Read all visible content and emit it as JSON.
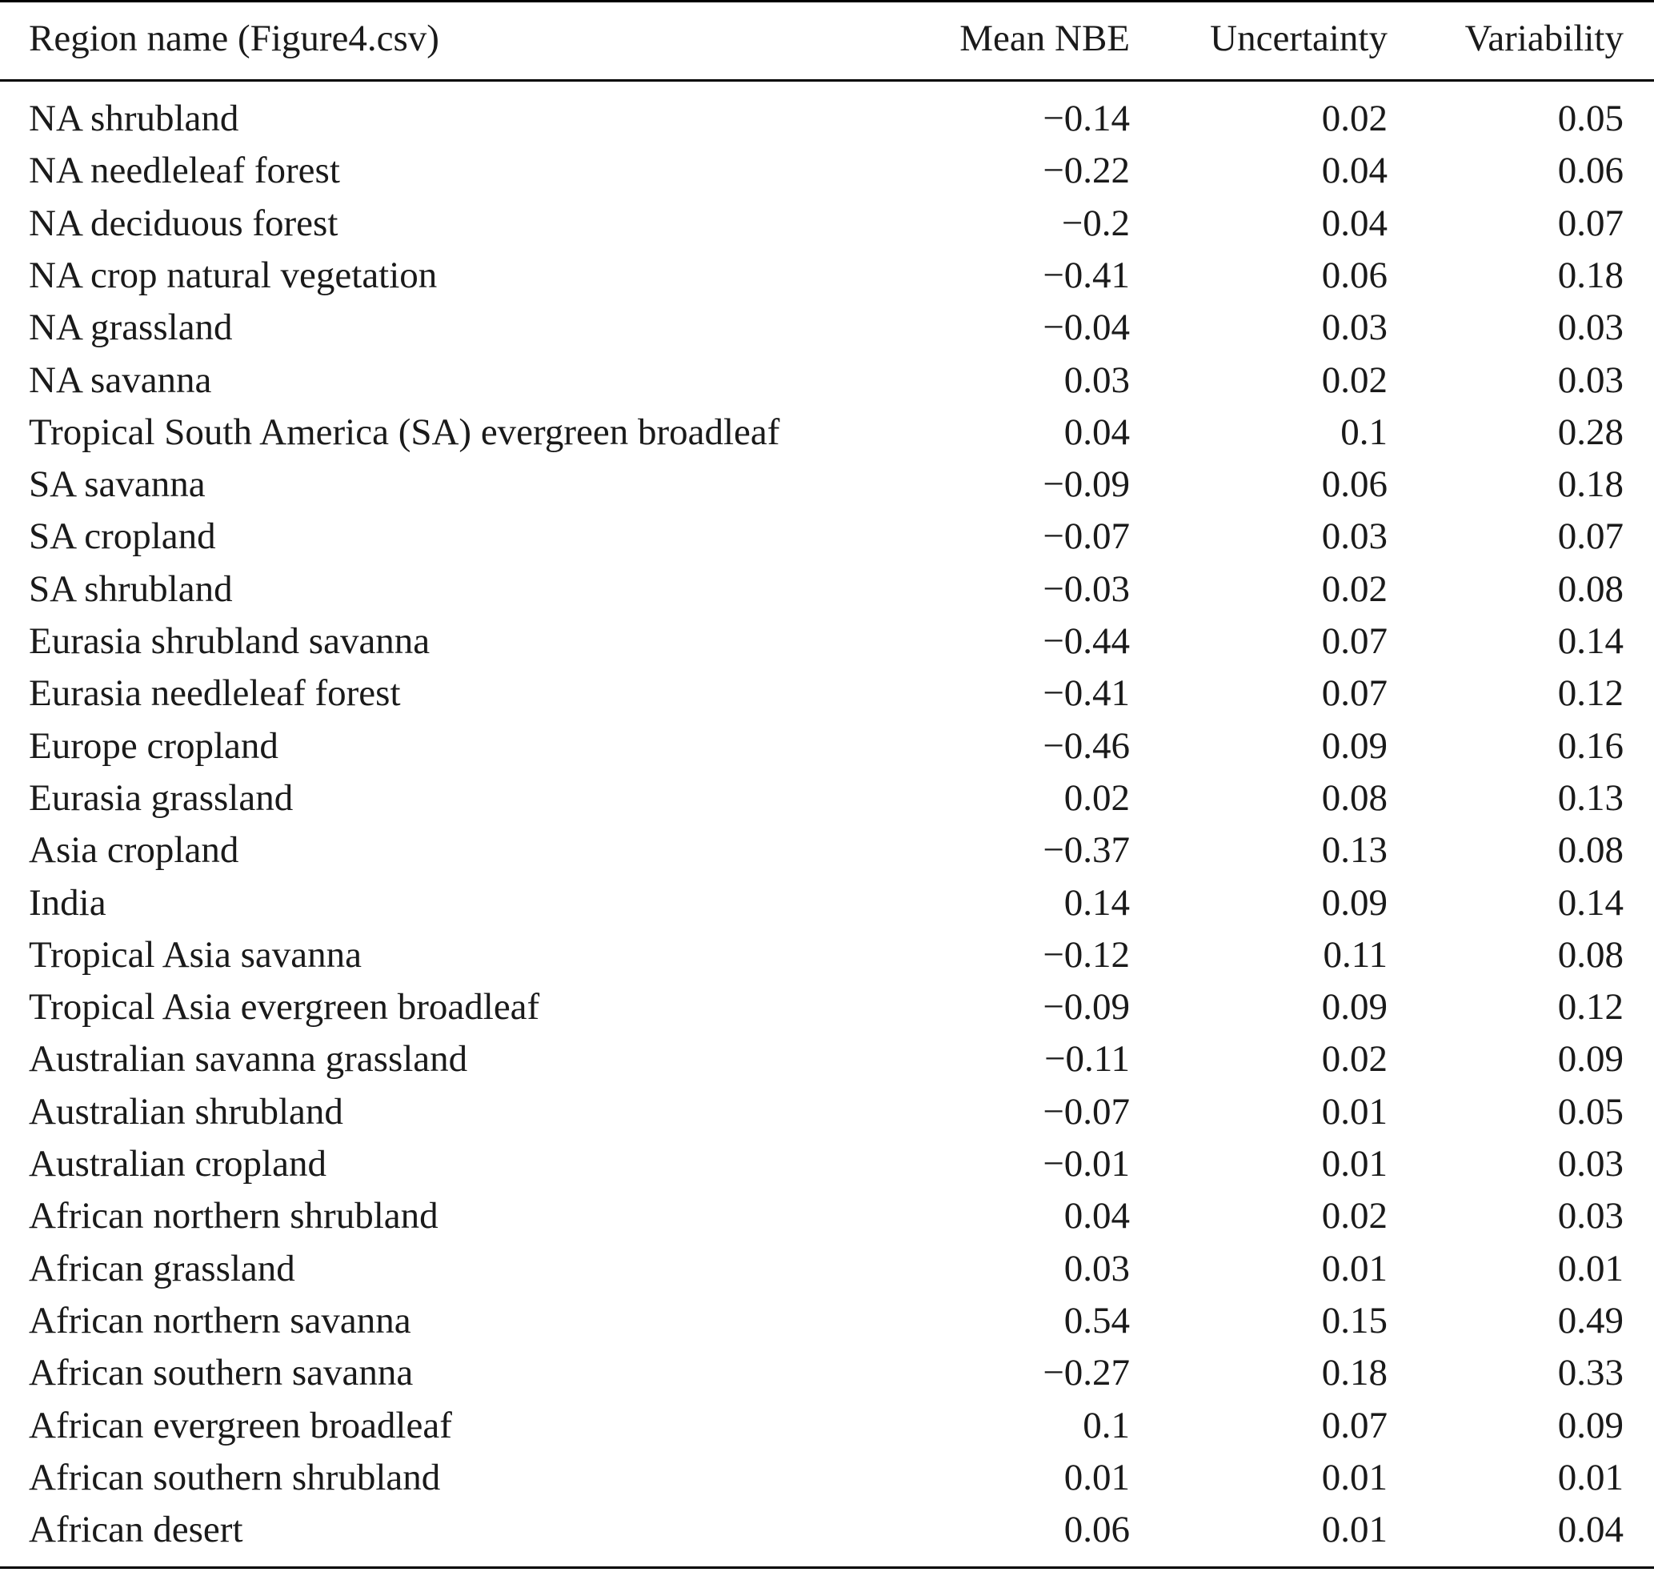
{
  "table": {
    "headers": {
      "region": "Region name (Figure4.csv)",
      "mean_nbe": "Mean NBE",
      "uncertainty": "Uncertainty",
      "variability": "Variability"
    },
    "rows": [
      {
        "region": "NA shrubland",
        "mean_nbe": "−0.14",
        "uncertainty": "0.02",
        "variability": "0.05"
      },
      {
        "region": "NA needleleaf forest",
        "mean_nbe": "−0.22",
        "uncertainty": "0.04",
        "variability": "0.06"
      },
      {
        "region": "NA deciduous forest",
        "mean_nbe": "−0.2",
        "uncertainty": "0.04",
        "variability": "0.07"
      },
      {
        "region": "NA crop natural vegetation",
        "mean_nbe": "−0.41",
        "uncertainty": "0.06",
        "variability": "0.18"
      },
      {
        "region": "NA grassland",
        "mean_nbe": "−0.04",
        "uncertainty": "0.03",
        "variability": "0.03"
      },
      {
        "region": "NA savanna",
        "mean_nbe": "0.03",
        "uncertainty": "0.02",
        "variability": "0.03"
      },
      {
        "region": "Tropical South America (SA) evergreen broadleaf",
        "mean_nbe": "0.04",
        "uncertainty": "0.1",
        "variability": "0.28"
      },
      {
        "region": "SA savanna",
        "mean_nbe": "−0.09",
        "uncertainty": "0.06",
        "variability": "0.18"
      },
      {
        "region": "SA cropland",
        "mean_nbe": "−0.07",
        "uncertainty": "0.03",
        "variability": "0.07"
      },
      {
        "region": "SA shrubland",
        "mean_nbe": "−0.03",
        "uncertainty": "0.02",
        "variability": "0.08"
      },
      {
        "region": "Eurasia shrubland savanna",
        "mean_nbe": "−0.44",
        "uncertainty": "0.07",
        "variability": "0.14"
      },
      {
        "region": "Eurasia needleleaf forest",
        "mean_nbe": "−0.41",
        "uncertainty": "0.07",
        "variability": "0.12"
      },
      {
        "region": "Europe cropland",
        "mean_nbe": "−0.46",
        "uncertainty": "0.09",
        "variability": "0.16"
      },
      {
        "region": "Eurasia grassland",
        "mean_nbe": "0.02",
        "uncertainty": "0.08",
        "variability": "0.13"
      },
      {
        "region": "Asia cropland",
        "mean_nbe": "−0.37",
        "uncertainty": "0.13",
        "variability": "0.08"
      },
      {
        "region": "India",
        "mean_nbe": "0.14",
        "uncertainty": "0.09",
        "variability": "0.14"
      },
      {
        "region": "Tropical Asia savanna",
        "mean_nbe": "−0.12",
        "uncertainty": "0.11",
        "variability": "0.08"
      },
      {
        "region": "Tropical Asia evergreen broadleaf",
        "mean_nbe": "−0.09",
        "uncertainty": "0.09",
        "variability": "0.12"
      },
      {
        "region": "Australian savanna grassland",
        "mean_nbe": "−0.11",
        "uncertainty": "0.02",
        "variability": "0.09"
      },
      {
        "region": "Australian shrubland",
        "mean_nbe": "−0.07",
        "uncertainty": "0.01",
        "variability": "0.05"
      },
      {
        "region": "Australian cropland",
        "mean_nbe": "−0.01",
        "uncertainty": "0.01",
        "variability": "0.03"
      },
      {
        "region": "African northern shrubland",
        "mean_nbe": "0.04",
        "uncertainty": "0.02",
        "variability": "0.03"
      },
      {
        "region": "African grassland",
        "mean_nbe": "0.03",
        "uncertainty": "0.01",
        "variability": "0.01"
      },
      {
        "region": "African northern savanna",
        "mean_nbe": "0.54",
        "uncertainty": "0.15",
        "variability": "0.49"
      },
      {
        "region": "African southern savanna",
        "mean_nbe": "−0.27",
        "uncertainty": "0.18",
        "variability": "0.33"
      },
      {
        "region": "African evergreen broadleaf",
        "mean_nbe": "0.1",
        "uncertainty": "0.07",
        "variability": "0.09"
      },
      {
        "region": "African southern shrubland",
        "mean_nbe": "0.01",
        "uncertainty": "0.01",
        "variability": "0.01"
      },
      {
        "region": "African desert",
        "mean_nbe": "0.06",
        "uncertainty": "0.01",
        "variability": "0.04"
      }
    ]
  }
}
